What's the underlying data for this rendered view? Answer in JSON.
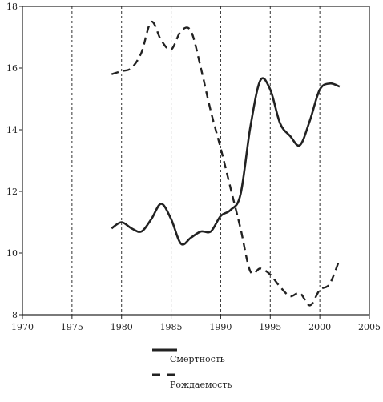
{
  "chart_data": {
    "type": "line",
    "title": "",
    "xlabel": "",
    "ylabel": "",
    "xlim": [
      1970,
      2005
    ],
    "ylim": [
      8,
      18
    ],
    "x_ticks": [
      1970,
      1975,
      1980,
      1985,
      1990,
      1995,
      2000,
      2005
    ],
    "x_tick_labels": [
      "1970",
      "1975",
      "1980",
      "1985",
      "1990",
      "1995",
      "2000",
      "2005"
    ],
    "y_ticks": [
      8,
      10,
      12,
      14,
      16,
      18
    ],
    "y_tick_labels": [
      "8",
      "10",
      "12",
      "14",
      "16",
      "18"
    ],
    "vertical_gridlines": [
      1975,
      1980,
      1985,
      1990,
      1995,
      2000
    ],
    "grid": "vertical-dashed",
    "legend_position": "bottom-center",
    "series": [
      {
        "name": "Смертность",
        "style": "solid",
        "color": "#222222",
        "x": [
          1979,
          1980,
          1981,
          1982,
          1983,
          1984,
          1985,
          1986,
          1987,
          1988,
          1989,
          1990,
          1991,
          1992,
          1993,
          1994,
          1995,
          1996,
          1997,
          1998,
          1999,
          2000,
          2001,
          2002
        ],
        "values": [
          10.8,
          11.0,
          10.8,
          10.7,
          11.1,
          11.6,
          11.1,
          10.3,
          10.5,
          10.7,
          10.7,
          11.2,
          11.4,
          11.9,
          14.1,
          15.6,
          15.3,
          14.2,
          13.8,
          13.5,
          14.3,
          15.3,
          15.5,
          15.4
        ]
      },
      {
        "name": "Рождаемость",
        "style": "dashed",
        "color": "#222222",
        "x": [
          1979,
          1980,
          1981,
          1982,
          1983,
          1984,
          1985,
          1986,
          1987,
          1988,
          1989,
          1990,
          1991,
          1992,
          1993,
          1994,
          1995,
          1996,
          1997,
          1998,
          1999,
          2000,
          2001,
          2002
        ],
        "values": [
          15.8,
          15.9,
          16.0,
          16.5,
          17.5,
          16.9,
          16.6,
          17.2,
          17.2,
          16.0,
          14.6,
          13.4,
          12.1,
          10.8,
          9.4,
          9.5,
          9.3,
          8.9,
          8.6,
          8.7,
          8.3,
          8.8,
          9.0,
          9.8
        ]
      }
    ]
  }
}
